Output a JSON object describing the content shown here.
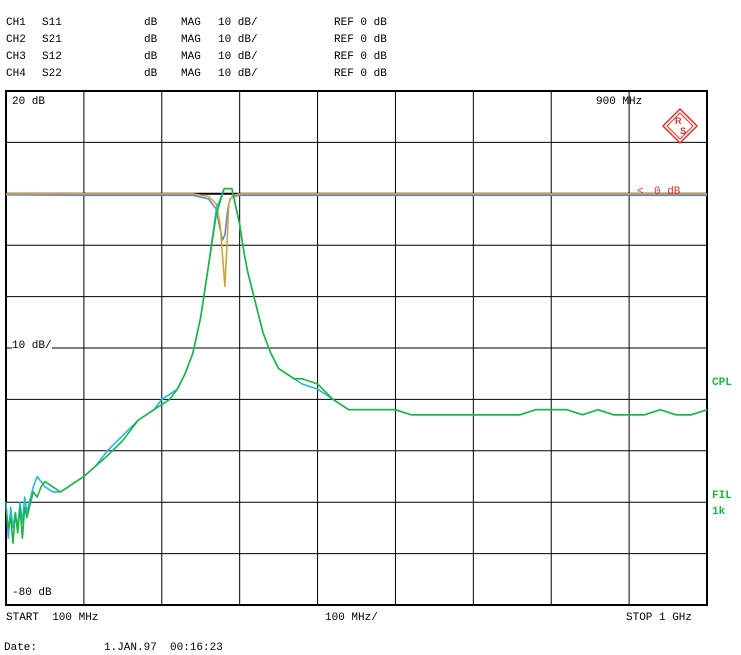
{
  "header": {
    "channels": [
      {
        "ch": "CH1",
        "param": "S11",
        "unit": "dB",
        "format": "MAG",
        "scale": "10 dB/",
        "ref": "REF 0 dB"
      },
      {
        "ch": "CH2",
        "param": "S21",
        "unit": "dB",
        "format": "MAG",
        "scale": "10 dB/",
        "ref": "REF 0 dB"
      },
      {
        "ch": "CH3",
        "param": "S12",
        "unit": "dB",
        "format": "MAG",
        "scale": "10 dB/",
        "ref": "REF 0 dB"
      },
      {
        "ch": "CH4",
        "param": "S22",
        "unit": "dB",
        "format": "MAG",
        "scale": "10 dB/",
        "ref": "REF 0 dB"
      }
    ]
  },
  "plot_labels": {
    "top_left": "20 dB",
    "top_right": "900 MHz",
    "mid_left": "10 dB/",
    "bottom_left": "-80 dB",
    "ref_marker": "0 dB",
    "ref_marker_glyph": "<",
    "cpl": "CPL",
    "fil": "FIL",
    "fil_k": "1k"
  },
  "footer": {
    "start": "START  100 MHz",
    "span": "100 MHz/",
    "stop": "STOP 1 GHz",
    "date_label": "Date:",
    "date_value": "1.JAN.97  00:16:23"
  },
  "colors": {
    "grid": "#000000",
    "s21": "#1fb445",
    "s12": "#2ab7d6",
    "s11": "#c9a83a",
    "s22": "#6a7fd0",
    "ref_marker": "#d8322c",
    "logo": "#d8322c"
  },
  "chart_data": {
    "type": "line",
    "xlabel": "",
    "ylabel": "",
    "xlim": [
      100,
      1000
    ],
    "ylim": [
      -80,
      20
    ],
    "x_unit": "MHz",
    "y_unit": "dB",
    "grid": true,
    "series": [
      {
        "color_key": "s21",
        "x": [
          100,
          103,
          106,
          109,
          112,
          115,
          118,
          121,
          124,
          127,
          130,
          135,
          140,
          145,
          150,
          160,
          170,
          180,
          190,
          200,
          215,
          230,
          250,
          270,
          290,
          300,
          310,
          320,
          330,
          340,
          350,
          360,
          370,
          380,
          390,
          400,
          405,
          410,
          415,
          420,
          425,
          430,
          440,
          450,
          460,
          470,
          480,
          500,
          520,
          540,
          560,
          580,
          600,
          620,
          640,
          660,
          680,
          700,
          720,
          740,
          760,
          780,
          800,
          820,
          840,
          860,
          880,
          900,
          920,
          940,
          960,
          980,
          1000
        ],
        "y": [
          -61,
          -65,
          -63,
          -68,
          -62,
          -66,
          -61,
          -67,
          -61,
          -63,
          -61,
          -58,
          -59,
          -57,
          -56,
          -57,
          -58,
          -57,
          -56,
          -55,
          -53,
          -51,
          -48,
          -44,
          -42,
          -41,
          -40,
          -38,
          -35,
          -31,
          -24,
          -14,
          -4,
          1,
          1,
          -6,
          -11,
          -15,
          -18,
          -21,
          -24,
          -27,
          -31,
          -34,
          -35,
          -36,
          -36,
          -37,
          -40,
          -42,
          -42,
          -42,
          -42,
          -43,
          -43,
          -43,
          -43,
          -43,
          -43,
          -43,
          -43,
          -42,
          -42,
          -42,
          -43,
          -42,
          -43,
          -43,
          -43,
          -42,
          -43,
          -43,
          -42
        ]
      },
      {
        "color_key": "s12",
        "x": [
          100,
          103,
          106,
          109,
          112,
          115,
          118,
          121,
          124,
          127,
          130,
          135,
          140,
          145,
          150,
          160,
          170,
          180,
          190,
          200,
          215,
          230,
          250,
          270,
          290,
          300,
          310,
          320,
          330,
          340,
          350,
          360,
          370,
          380,
          390,
          400,
          405,
          410,
          415,
          420,
          425,
          430,
          440,
          450,
          460,
          470,
          480,
          500,
          520,
          540,
          560,
          580,
          600,
          620,
          640,
          660,
          680,
          700,
          720,
          740,
          760,
          780,
          800,
          820,
          840,
          860,
          880,
          900,
          920,
          940,
          960,
          980,
          1000
        ],
        "y": [
          -60,
          -67,
          -61,
          -65,
          -62,
          -65,
          -60,
          -64,
          -59,
          -62,
          -60,
          -57,
          -55,
          -56,
          -57,
          -58,
          -58,
          -57,
          -56,
          -55,
          -53,
          -50,
          -47,
          -44,
          -42,
          -40,
          -39,
          -38,
          -35,
          -31,
          -24,
          -14,
          -3,
          1,
          1,
          -6,
          -11,
          -15,
          -18,
          -21,
          -24,
          -27,
          -31,
          -34,
          -35,
          -36,
          -37,
          -38,
          -40,
          -42,
          -42,
          -42,
          -42,
          -43,
          -43,
          -43,
          -43,
          -43,
          -43,
          -43,
          -43,
          -42,
          -42,
          -42,
          -43,
          -42,
          -43,
          -43,
          -43,
          -42,
          -43,
          -43,
          -42
        ]
      },
      {
        "color_key": "s11",
        "x": [
          100,
          200,
          300,
          340,
          360,
          370,
          375,
          378,
          381,
          384,
          386,
          388,
          392,
          400,
          410,
          420,
          500,
          600,
          700,
          800,
          900,
          1000
        ],
        "y": [
          0,
          0,
          0,
          0,
          -0.5,
          -2,
          -6,
          -12,
          -18,
          -9,
          -2,
          -1,
          -0.3,
          0,
          0,
          0,
          0,
          0,
          0,
          0,
          0,
          0
        ]
      },
      {
        "color_key": "s22",
        "x": [
          100,
          200,
          300,
          340,
          360,
          370,
          375,
          378,
          381,
          384,
          386,
          388,
          392,
          400,
          410,
          420,
          500,
          600,
          700,
          800,
          900,
          1000
        ],
        "y": [
          -0.2,
          -0.3,
          -0.3,
          -0.3,
          -1,
          -3,
          -7,
          -9,
          -8,
          -4,
          -2,
          -1,
          -0.5,
          -0.3,
          -0.3,
          -0.3,
          -0.3,
          -0.3,
          -0.3,
          -0.3,
          -0.3,
          -0.3
        ]
      }
    ]
  }
}
